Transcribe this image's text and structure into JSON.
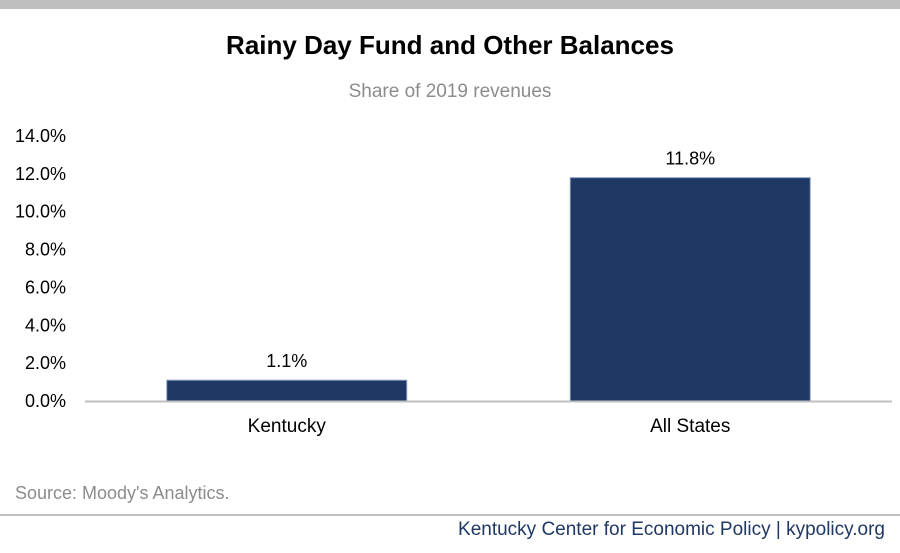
{
  "colors": {
    "bar": "#1f3864",
    "axis": "#bfbfbf",
    "footer_text": "#1f3864",
    "top_bar": "#bfbfbf",
    "muted_text": "#8c8c8c"
  },
  "chart_data": {
    "type": "bar",
    "title": "Rainy Day Fund and Other Balances",
    "subtitle": "Share of 2019 revenues",
    "categories": [
      "Kentucky",
      "All States"
    ],
    "values": [
      1.1,
      11.8
    ],
    "data_labels": [
      "1.1%",
      "11.8%"
    ],
    "ylim": [
      0,
      14
    ],
    "yticks": [
      0,
      2,
      4,
      6,
      8,
      10,
      12,
      14
    ],
    "ytick_labels": [
      "0.0%",
      "2.0%",
      "4.0%",
      "6.0%",
      "8.0%",
      "10.0%",
      "12.0%",
      "14.0%"
    ],
    "grid": false,
    "legend": "none"
  },
  "source": "Source: Moody's Analytics.",
  "footer": "Kentucky Center for Economic Policy | kypolicy.org"
}
